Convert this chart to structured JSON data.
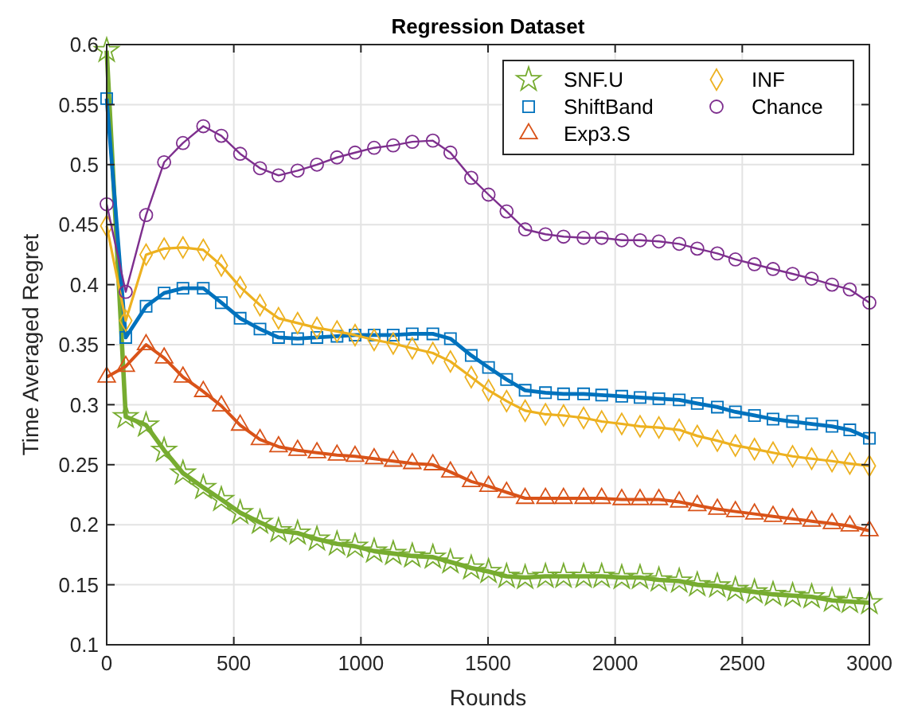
{
  "chart_data": {
    "type": "line",
    "title": "Regression Dataset",
    "xlabel": "Rounds",
    "ylabel": "Time Averaged Regret",
    "x": [
      0,
      75,
      155,
      226,
      300,
      380,
      451,
      525,
      603,
      676,
      751,
      827,
      906,
      977,
      1052,
      1127,
      1202,
      1283,
      1352,
      1434,
      1502,
      1573,
      1646,
      1726,
      1797,
      1876,
      1947,
      2026,
      2098,
      2172,
      2252,
      2323,
      2402,
      2473,
      2548,
      2621,
      2698,
      2773,
      2853,
      2923,
      3000
    ],
    "series": [
      {
        "name": "SNF.U",
        "color": "#77ac30",
        "marker": "star",
        "values": [
          0.595,
          0.29,
          0.283,
          0.262,
          0.243,
          0.231,
          0.221,
          0.21,
          0.202,
          0.195,
          0.193,
          0.188,
          0.184,
          0.182,
          0.178,
          0.176,
          0.174,
          0.173,
          0.169,
          0.164,
          0.161,
          0.157,
          0.156,
          0.157,
          0.157,
          0.157,
          0.157,
          0.156,
          0.156,
          0.154,
          0.153,
          0.15,
          0.149,
          0.146,
          0.144,
          0.142,
          0.141,
          0.14,
          0.137,
          0.136,
          0.135
        ]
      },
      {
        "name": "ShiftBand",
        "color": "#0072bd",
        "marker": "square",
        "values": [
          0.555,
          0.356,
          0.382,
          0.393,
          0.397,
          0.397,
          0.385,
          0.372,
          0.363,
          0.356,
          0.355,
          0.356,
          0.357,
          0.358,
          0.358,
          0.358,
          0.359,
          0.359,
          0.355,
          0.341,
          0.331,
          0.321,
          0.312,
          0.31,
          0.309,
          0.309,
          0.308,
          0.307,
          0.306,
          0.305,
          0.304,
          0.301,
          0.298,
          0.294,
          0.291,
          0.288,
          0.286,
          0.284,
          0.282,
          0.279,
          0.272
        ]
      },
      {
        "name": "Exp3.S",
        "color": "#d95319",
        "marker": "triangle",
        "values": [
          0.323,
          0.332,
          0.35,
          0.339,
          0.323,
          0.311,
          0.299,
          0.283,
          0.271,
          0.265,
          0.262,
          0.26,
          0.258,
          0.257,
          0.255,
          0.253,
          0.251,
          0.25,
          0.244,
          0.236,
          0.232,
          0.227,
          0.222,
          0.222,
          0.222,
          0.222,
          0.222,
          0.221,
          0.221,
          0.221,
          0.219,
          0.216,
          0.213,
          0.211,
          0.209,
          0.207,
          0.205,
          0.203,
          0.201,
          0.199,
          0.195
        ]
      },
      {
        "name": "INF",
        "color": "#edb120",
        "marker": "diamond",
        "values": [
          0.449,
          0.37,
          0.425,
          0.43,
          0.431,
          0.429,
          0.416,
          0.398,
          0.383,
          0.372,
          0.368,
          0.364,
          0.361,
          0.358,
          0.354,
          0.351,
          0.347,
          0.343,
          0.336,
          0.323,
          0.312,
          0.303,
          0.295,
          0.292,
          0.291,
          0.289,
          0.286,
          0.284,
          0.282,
          0.281,
          0.279,
          0.274,
          0.27,
          0.266,
          0.263,
          0.26,
          0.257,
          0.255,
          0.253,
          0.251,
          0.249
        ]
      },
      {
        "name": "Chance",
        "color": "#7e2f8e",
        "marker": "circle",
        "values": [
          0.467,
          0.394,
          0.458,
          0.502,
          0.518,
          0.532,
          0.524,
          0.509,
          0.497,
          0.491,
          0.495,
          0.5,
          0.506,
          0.51,
          0.514,
          0.516,
          0.519,
          0.52,
          0.51,
          0.489,
          0.475,
          0.461,
          0.446,
          0.442,
          0.44,
          0.439,
          0.439,
          0.437,
          0.437,
          0.436,
          0.434,
          0.43,
          0.426,
          0.421,
          0.417,
          0.413,
          0.409,
          0.405,
          0.4,
          0.396,
          0.385
        ]
      }
    ],
    "xlim": [
      0,
      3000
    ],
    "xticks": [
      0,
      500,
      1000,
      1500,
      2000,
      2500,
      3000
    ],
    "ylim": [
      0.1,
      0.6
    ],
    "yticks": [
      0.1,
      0.15,
      0.2,
      0.25,
      0.3,
      0.35,
      0.4,
      0.45,
      0.5,
      0.55,
      0.6
    ],
    "grid": true,
    "legend": "top right",
    "line_style": "solid"
  }
}
